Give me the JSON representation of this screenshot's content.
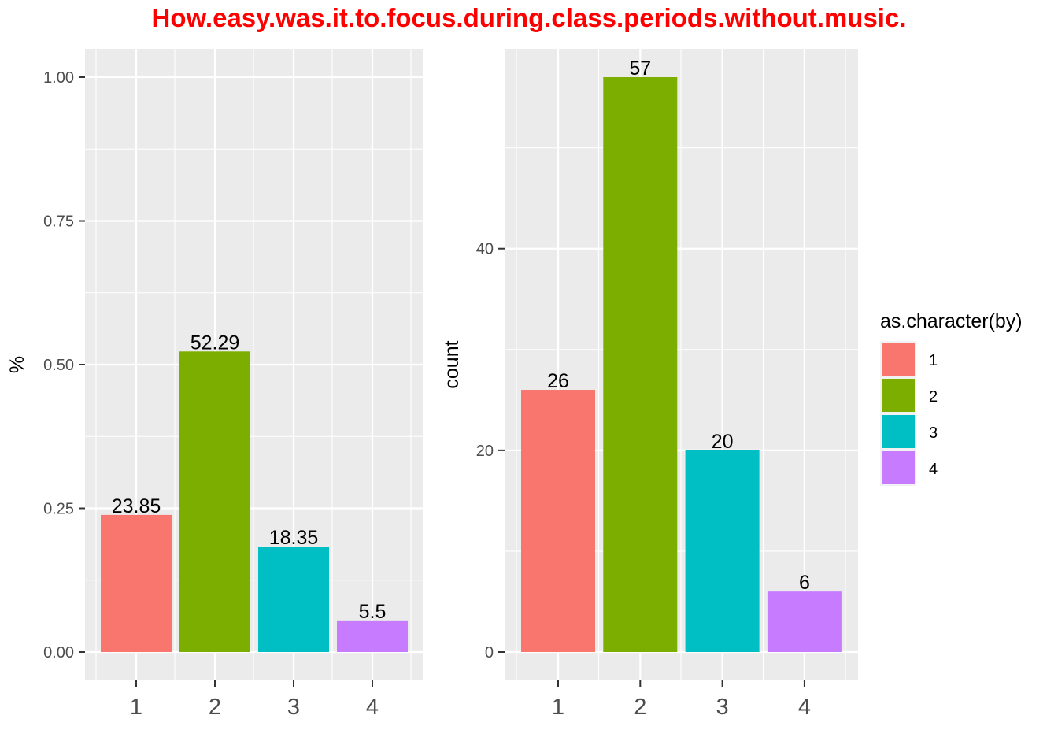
{
  "title": "How.easy.was.it.to.focus.during.class.periods.without.music.",
  "colors": {
    "title": "#FF0000",
    "panel_bg": "#EBEBEB",
    "grid": "#FFFFFF",
    "axis_text": "#4D4D4D",
    "series": [
      "#F8766D",
      "#7CAE00",
      "#00BFC4",
      "#C77CFF"
    ]
  },
  "chart_data": [
    {
      "type": "bar",
      "categories": [
        "1",
        "2",
        "3",
        "4"
      ],
      "values": [
        0.2385,
        0.5229,
        0.1835,
        0.055
      ],
      "labels": [
        "23.85",
        "52.29",
        "18.35",
        "5.5"
      ],
      "xlabel": "",
      "ylabel": "%",
      "ylim": [
        0,
        1
      ],
      "yticks": [
        0,
        0.25,
        0.5,
        0.75,
        1
      ],
      "ytick_labels": [
        "0.00",
        "0.25",
        "0.50",
        "0.75",
        "1.00"
      ],
      "grid": true
    },
    {
      "type": "bar",
      "categories": [
        "1",
        "2",
        "3",
        "4"
      ],
      "values": [
        26,
        57,
        20,
        6
      ],
      "labels": [
        "26",
        "57",
        "20",
        "6"
      ],
      "xlabel": "",
      "ylabel": "count",
      "ylim": [
        0,
        57
      ],
      "yticks": [
        0,
        20,
        40
      ],
      "ytick_labels": [
        "0",
        "20",
        "40"
      ],
      "grid": true
    }
  ],
  "legend": {
    "title": "as.character(by)",
    "items": [
      "1",
      "2",
      "3",
      "4"
    ],
    "placement": "right"
  }
}
